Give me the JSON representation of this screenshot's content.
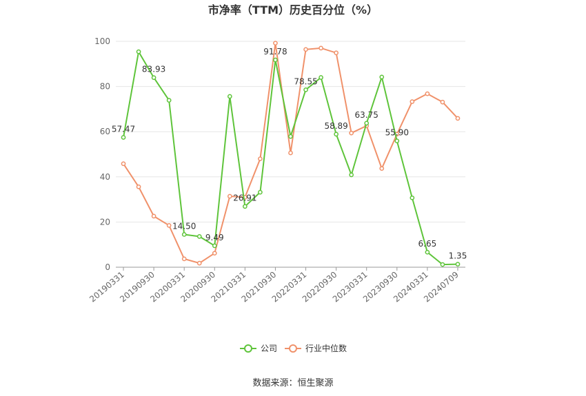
{
  "chart_data": {
    "type": "line",
    "title": "市净率（TTM）历史百分位（%）",
    "source": "数据来源：恒生聚源",
    "ylim": [
      0,
      100
    ],
    "yticks": [
      "0",
      "20",
      "40",
      "60",
      "80",
      "100"
    ],
    "grid": true,
    "legend_position": "bottom",
    "x": [
      "20190331",
      "20190630",
      "20190930",
      "20191231",
      "20200331",
      "20200630",
      "20200930",
      "20201231",
      "20210331",
      "20210630",
      "20210930",
      "20211231",
      "20220331",
      "20220630",
      "20220930",
      "20221231",
      "20230331",
      "20230630",
      "20230930",
      "20231231",
      "20240331",
      "20240630",
      "20240709"
    ],
    "x_tick_labels": [
      "20190331",
      "20190930",
      "20200331",
      "20200930",
      "20210331",
      "20210930",
      "20220331",
      "20220930",
      "20230331",
      "20230930",
      "20240331",
      "20240709"
    ],
    "series": [
      {
        "name": "公司",
        "color": "#5ec43a",
        "values": [
          57.47,
          95.4,
          83.93,
          73.9,
          14.5,
          13.6,
          9.49,
          75.6,
          26.91,
          33.2,
          91.78,
          57.9,
          78.55,
          84.0,
          58.89,
          40.9,
          63.75,
          84.2,
          55.9,
          30.7,
          6.65,
          1.2,
          1.35
        ],
        "labels": [
          "57.47",
          "",
          "83.93",
          "",
          "14.50",
          "",
          "9.49",
          "",
          "26.91",
          "",
          "91.78",
          "",
          "78.55",
          "",
          "58.89",
          "",
          "63.75",
          "",
          "55.90",
          "",
          "6.65",
          "",
          "1.35"
        ]
      },
      {
        "name": "行业中位数",
        "color": "#f0916a",
        "values": [
          45.8,
          35.6,
          22.6,
          18.5,
          3.7,
          1.8,
          6.2,
          31.4,
          31.0,
          48.0,
          99.2,
          50.6,
          96.4,
          97.0,
          94.9,
          59.4,
          62.6,
          43.7,
          58.9,
          73.3,
          76.8,
          73.1,
          65.9
        ]
      }
    ]
  }
}
